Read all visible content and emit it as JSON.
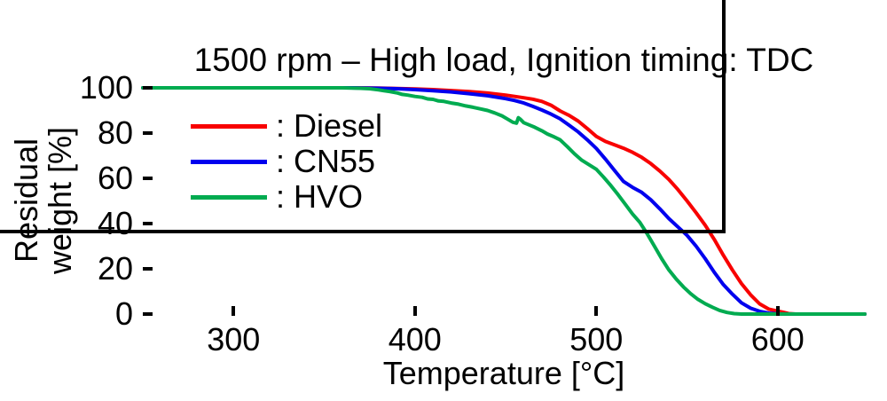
{
  "title": "1500 rpm – High load, Ignition timing: TDC",
  "x_axis": {
    "label": "Temperature [°C]",
    "ticks": [
      "300",
      "400",
      "500",
      "600"
    ],
    "tick_values": [
      300,
      400,
      500,
      600
    ]
  },
  "y_axis": {
    "label_line1": "Residual",
    "label_line2": "weight [%]",
    "ticks": [
      "100",
      "80",
      "60",
      "40",
      "20",
      "0"
    ],
    "tick_values": [
      100,
      80,
      60,
      40,
      20,
      0
    ]
  },
  "colors": {
    "axis": "#000000",
    "diesel": "#f80000",
    "cn55": "#0000ee",
    "hvo": "#00ab50"
  },
  "chart_data": {
    "type": "line",
    "title": "1500 rpm – High load, Ignition timing: TDC",
    "xlabel": "Temperature [°C]",
    "ylabel": "Residual weight [%]",
    "xlim": [
      250,
      648
    ],
    "ylim": [
      0,
      100
    ],
    "grid": false,
    "legend_position": "upper-left-inside",
    "series": [
      {
        "name": "Diesel",
        "legend_label": ": Diesel",
        "color": "#f80000",
        "points": [
          [
            250,
            100
          ],
          [
            280,
            100
          ],
          [
            310,
            100
          ],
          [
            340,
            100
          ],
          [
            365,
            100
          ],
          [
            380,
            99.9
          ],
          [
            390,
            99.7
          ],
          [
            400,
            99.5
          ],
          [
            410,
            99.2
          ],
          [
            420,
            98.8
          ],
          [
            430,
            98.3
          ],
          [
            440,
            97.7
          ],
          [
            450,
            96.8
          ],
          [
            460,
            95.6
          ],
          [
            465,
            95
          ],
          [
            470,
            94
          ],
          [
            475,
            92.3
          ],
          [
            480,
            89.8
          ],
          [
            485,
            87.8
          ],
          [
            490,
            85.3
          ],
          [
            495,
            82
          ],
          [
            500,
            78.5
          ],
          [
            505,
            76.3
          ],
          [
            510,
            74.8
          ],
          [
            515,
            73.3
          ],
          [
            520,
            71.5
          ],
          [
            525,
            69.3
          ],
          [
            530,
            66.5
          ],
          [
            535,
            63.2
          ],
          [
            540,
            59.5
          ],
          [
            545,
            55
          ],
          [
            550,
            50
          ],
          [
            555,
            44.8
          ],
          [
            560,
            39.3
          ],
          [
            565,
            33
          ],
          [
            570,
            26
          ],
          [
            575,
            19.5
          ],
          [
            580,
            13.5
          ],
          [
            585,
            8.5
          ],
          [
            590,
            4.5
          ],
          [
            595,
            2.2
          ],
          [
            600,
            1.3
          ],
          [
            603,
            0.8
          ],
          [
            606,
            0.2
          ],
          [
            610,
            0
          ],
          [
            625,
            0
          ],
          [
            648,
            0
          ]
        ]
      },
      {
        "name": "CN55",
        "legend_label": ": CN55",
        "color": "#0000ee",
        "points": [
          [
            250,
            100
          ],
          [
            280,
            100
          ],
          [
            310,
            100
          ],
          [
            340,
            100
          ],
          [
            365,
            100
          ],
          [
            380,
            99.8
          ],
          [
            390,
            99.6
          ],
          [
            400,
            99.2
          ],
          [
            410,
            98.7
          ],
          [
            420,
            98.2
          ],
          [
            430,
            97.4
          ],
          [
            440,
            96.5
          ],
          [
            450,
            95.2
          ],
          [
            455,
            94.4
          ],
          [
            460,
            93.3
          ],
          [
            465,
            91.8
          ],
          [
            470,
            90.2
          ],
          [
            475,
            88.4
          ],
          [
            480,
            86.3
          ],
          [
            485,
            83.5
          ],
          [
            490,
            80.5
          ],
          [
            495,
            77
          ],
          [
            500,
            73.2
          ],
          [
            505,
            68.5
          ],
          [
            510,
            63.5
          ],
          [
            515,
            58.6
          ],
          [
            520,
            56
          ],
          [
            525,
            53.8
          ],
          [
            530,
            50.5
          ],
          [
            535,
            46.5
          ],
          [
            540,
            42.2
          ],
          [
            545,
            38.5
          ],
          [
            550,
            34.8
          ],
          [
            555,
            30
          ],
          [
            560,
            24.5
          ],
          [
            565,
            18.5
          ],
          [
            570,
            13
          ],
          [
            575,
            8.8
          ],
          [
            580,
            5
          ],
          [
            585,
            2.6
          ],
          [
            590,
            1.2
          ],
          [
            595,
            0.4
          ],
          [
            600,
            0.1
          ],
          [
            605,
            0
          ],
          [
            625,
            0
          ],
          [
            648,
            0
          ]
        ]
      },
      {
        "name": "HVO",
        "legend_label": ": HVO",
        "color": "#00ab50",
        "points": [
          [
            250,
            100
          ],
          [
            280,
            100
          ],
          [
            310,
            100
          ],
          [
            340,
            100
          ],
          [
            360,
            100
          ],
          [
            370,
            99.8
          ],
          [
            375,
            99.6
          ],
          [
            380,
            99.1
          ],
          [
            383,
            98.7
          ],
          [
            386,
            98.4
          ],
          [
            390,
            97.8
          ],
          [
            393,
            97.1
          ],
          [
            396,
            96.8
          ],
          [
            400,
            96.2
          ],
          [
            404,
            95.8
          ],
          [
            407,
            95.1
          ],
          [
            410,
            94.9
          ],
          [
            413,
            94.2
          ],
          [
            416,
            94
          ],
          [
            420,
            93.3
          ],
          [
            424,
            92.8
          ],
          [
            428,
            92
          ],
          [
            432,
            91.4
          ],
          [
            436,
            90.7
          ],
          [
            440,
            90
          ],
          [
            444,
            88.9
          ],
          [
            448,
            87.6
          ],
          [
            451,
            86.2
          ],
          [
            454,
            84.8
          ],
          [
            456,
            84.4
          ],
          [
            457,
            86.8
          ],
          [
            458,
            86.2
          ],
          [
            460,
            84.6
          ],
          [
            463,
            83.6
          ],
          [
            466,
            82.6
          ],
          [
            470,
            81
          ],
          [
            473,
            79.6
          ],
          [
            476,
            78.6
          ],
          [
            480,
            77
          ],
          [
            484,
            74
          ],
          [
            488,
            70.8
          ],
          [
            492,
            68
          ],
          [
            496,
            66
          ],
          [
            500,
            64
          ],
          [
            504,
            60.5
          ],
          [
            508,
            56.8
          ],
          [
            512,
            52.8
          ],
          [
            516,
            48.5
          ],
          [
            520,
            44.2
          ],
          [
            524,
            40.5
          ],
          [
            528,
            35.5
          ],
          [
            532,
            30
          ],
          [
            536,
            24.5
          ],
          [
            540,
            19.5
          ],
          [
            544,
            15.5
          ],
          [
            548,
            12
          ],
          [
            552,
            9
          ],
          [
            556,
            6.5
          ],
          [
            560,
            4.6
          ],
          [
            564,
            3
          ],
          [
            568,
            1.6
          ],
          [
            572,
            0.7
          ],
          [
            576,
            0.2
          ],
          [
            580,
            0
          ],
          [
            600,
            0
          ],
          [
            625,
            0
          ],
          [
            648,
            0
          ]
        ]
      }
    ]
  }
}
